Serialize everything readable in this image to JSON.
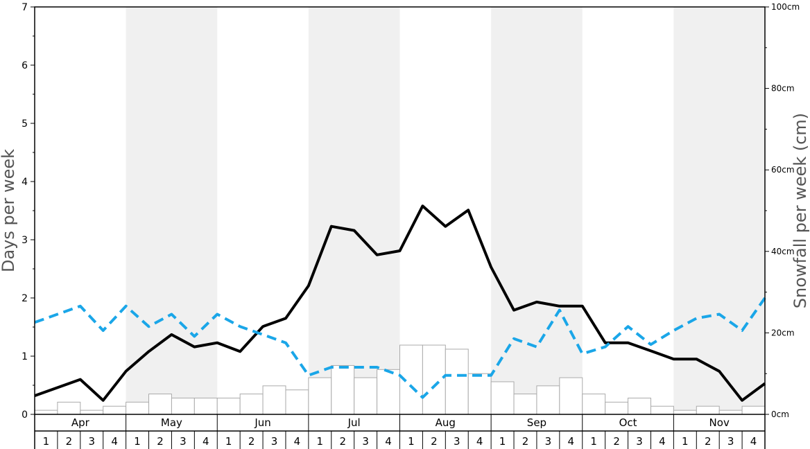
{
  "chart_data": {
    "type": "bar",
    "months": [
      "Apr",
      "May",
      "Jun",
      "Jul",
      "Aug",
      "Sep",
      "Oct",
      "Nov"
    ],
    "weeks": [
      "1",
      "2",
      "3",
      "4"
    ],
    "ylabel_left": "Days per week",
    "ylabel_right": "Snowfall per week (cm)",
    "ylim_left": [
      0,
      7
    ],
    "ylim_right": [
      0,
      100
    ],
    "left_ticks": [
      "0",
      "1",
      "2",
      "3",
      "4",
      "5",
      "6",
      "7"
    ],
    "right_ticks": [
      "0cm",
      "20cm",
      "40cm",
      "60cm",
      "80cm",
      "100cm"
    ],
    "series": [
      {
        "kind": "bar",
        "axis": "right",
        "values": [
          1,
          3,
          1,
          2,
          3,
          5,
          4,
          4,
          4,
          5,
          7,
          6,
          9,
          12,
          9,
          11,
          17,
          17,
          16,
          10,
          8,
          5,
          7,
          9,
          5,
          3,
          4,
          2,
          1,
          2,
          1,
          2
        ]
      },
      {
        "kind": "line",
        "axis": "left",
        "style": "solid",
        "color": "#000000",
        "values": [
          0.32,
          0.46,
          0.6,
          0.24,
          0.74,
          1.08,
          1.37,
          1.16,
          1.23,
          1.08,
          1.51,
          1.65,
          2.21,
          3.23,
          3.16,
          2.74,
          2.81,
          3.58,
          3.23,
          3.51,
          2.53,
          1.79,
          1.93,
          1.86,
          1.86,
          1.23,
          1.23,
          1.09,
          0.95,
          0.95,
          0.74,
          0.24,
          0.53
        ]
      },
      {
        "kind": "line",
        "axis": "left",
        "style": "dashed",
        "color": "#1aa6e8",
        "values": [
          1.58,
          1.72,
          1.86,
          1.44,
          1.86,
          1.51,
          1.72,
          1.34,
          1.72,
          1.51,
          1.37,
          1.23,
          0.67,
          0.81,
          0.81,
          0.81,
          0.67,
          0.29,
          0.67,
          0.67,
          0.67,
          1.3,
          1.16,
          1.79,
          1.04,
          1.16,
          1.51,
          1.2,
          1.44,
          1.65,
          1.72,
          1.44,
          2.0
        ]
      }
    ],
    "colors": {
      "band": "#f0f0f0",
      "bar_fill": "#ffffff",
      "bar_stroke": "#aaaaaa",
      "solid_line": "#000000",
      "dashed_line": "#1aa6e8"
    }
  }
}
